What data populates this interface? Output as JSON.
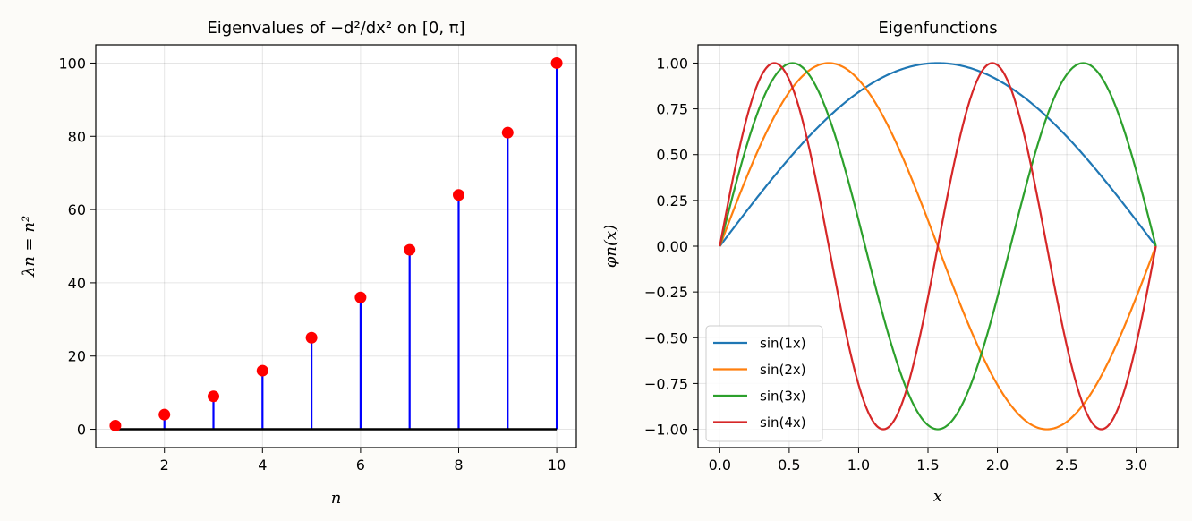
{
  "chart_data": [
    {
      "type": "stem",
      "title": "Eigenvalues of −d²/dx² on [0, π]",
      "xlabel": "n",
      "ylabel": "λn = n²",
      "xlim": [
        0.6,
        10.4
      ],
      "ylim": [
        -5,
        105
      ],
      "xticks": [
        2,
        4,
        6,
        8,
        10
      ],
      "yticks": [
        0,
        20,
        40,
        60,
        80,
        100
      ],
      "grid": true,
      "x": [
        1,
        2,
        3,
        4,
        5,
        6,
        7,
        8,
        9,
        10
      ],
      "y": [
        1,
        4,
        9,
        16,
        25,
        36,
        49,
        64,
        81,
        100
      ],
      "colors": {
        "stem": "#0000ff",
        "marker": "#ff0000",
        "baseline": "#000000"
      }
    },
    {
      "type": "line",
      "title": "Eigenfunctions",
      "xlabel": "x",
      "ylabel": "φn(x)",
      "xlim": [
        -0.157,
        3.299
      ],
      "ylim": [
        -1.1,
        1.1
      ],
      "xticks": [
        0.0,
        0.5,
        1.0,
        1.5,
        2.0,
        2.5,
        3.0
      ],
      "yticks": [
        -1.0,
        -0.75,
        -0.5,
        -0.25,
        0.0,
        0.25,
        0.5,
        0.75,
        1.0
      ],
      "grid": true,
      "legend": "lower-left",
      "x_range": [
        0,
        3.14159
      ],
      "series": [
        {
          "name": "sin(1x)",
          "k": 1,
          "color": "#1f77b4"
        },
        {
          "name": "sin(2x)",
          "k": 2,
          "color": "#ff7f0e"
        },
        {
          "name": "sin(3x)",
          "k": 3,
          "color": "#2ca02c"
        },
        {
          "name": "sin(4x)",
          "k": 4,
          "color": "#d62728"
        }
      ]
    }
  ]
}
